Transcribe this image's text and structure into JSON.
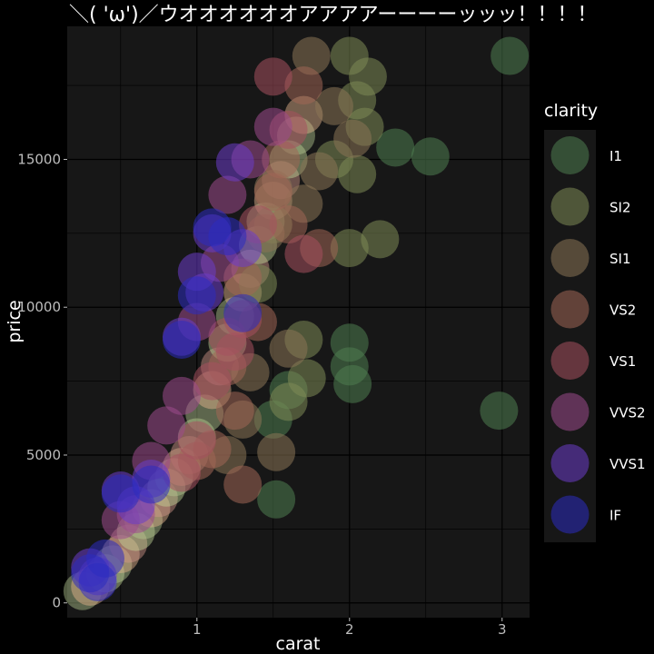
{
  "chart_data": {
    "type": "scatter",
    "title": "＼( 'ω')／ウオオオオオオアアアアーーーーッッッ！！！！",
    "xlabel": "carat",
    "ylabel": "price",
    "xlim": [
      0.15,
      3.18
    ],
    "ylim": [
      -500,
      19500
    ],
    "xticks": [
      1,
      2,
      3
    ],
    "yticks": [
      0,
      5000,
      10000,
      15000
    ],
    "xtick_labels": [
      "1",
      "2",
      "3"
    ],
    "ytick_labels": [
      "0",
      "5000",
      "10000",
      "15000"
    ],
    "grid": true,
    "background": "#171717",
    "legend": {
      "title": "clarity",
      "position": "right"
    },
    "series": [
      {
        "name": "I1",
        "color": "#4f7d50",
        "points": [
          [
            1.52,
            3500
          ],
          [
            1.5,
            6200
          ],
          [
            2.02,
            7400
          ],
          [
            2.0,
            8000
          ],
          [
            2.0,
            8800
          ],
          [
            2.3,
            15400
          ],
          [
            2.53,
            15100
          ],
          [
            2.98,
            6500
          ],
          [
            3.05,
            18500
          ],
          [
            1.6,
            7200
          ]
        ]
      },
      {
        "name": "SI2",
        "color": "#7d8a55",
        "points": [
          [
            1.7,
            8900
          ],
          [
            2.0,
            18500
          ],
          [
            2.05,
            17000
          ],
          [
            2.1,
            16100
          ],
          [
            2.2,
            12300
          ],
          [
            1.72,
            7600
          ],
          [
            1.6,
            6800
          ],
          [
            2.0,
            12000
          ],
          [
            2.05,
            14500
          ],
          [
            1.5,
            12800
          ],
          [
            1.9,
            15000
          ],
          [
            2.12,
            17800
          ],
          [
            1.4,
            10800
          ]
        ]
      },
      {
        "name": "SI1",
        "color": "#8a7555",
        "points": [
          [
            1.52,
            5100
          ],
          [
            1.6,
            8600
          ],
          [
            1.7,
            13500
          ],
          [
            1.8,
            14600
          ],
          [
            2.02,
            15700
          ],
          [
            1.75,
            18500
          ],
          [
            1.5,
            14000
          ],
          [
            1.2,
            5000
          ],
          [
            1.3,
            6200
          ],
          [
            1.45,
            12500
          ],
          [
            1.9,
            16800
          ],
          [
            1.35,
            7800
          ]
        ]
      },
      {
        "name": "VS2",
        "color": "#a06655",
        "points": [
          [
            1.5,
            13900
          ],
          [
            1.55,
            15000
          ],
          [
            1.6,
            12800
          ],
          [
            1.7,
            17500
          ],
          [
            1.2,
            8000
          ],
          [
            1.25,
            6500
          ],
          [
            1.1,
            5200
          ],
          [
            1.4,
            9500
          ],
          [
            1.0,
            4800
          ],
          [
            1.3,
            11000
          ],
          [
            1.8,
            12000
          ],
          [
            1.3,
            4000
          ]
        ]
      },
      {
        "name": "VS1",
        "color": "#a5505e",
        "points": [
          [
            1.5,
            17800
          ],
          [
            1.2,
            9000
          ],
          [
            1.1,
            7500
          ],
          [
            1.0,
            5500
          ],
          [
            1.3,
            9600
          ],
          [
            1.6,
            16000
          ],
          [
            1.4,
            12800
          ],
          [
            1.7,
            11800
          ],
          [
            1.25,
            8500
          ],
          [
            0.9,
            4400
          ]
        ]
      },
      {
        "name": "VVS2",
        "color": "#9d4a8d",
        "points": [
          [
            1.5,
            16100
          ],
          [
            1.15,
            11500
          ],
          [
            1.0,
            9500
          ],
          [
            0.9,
            7000
          ],
          [
            0.7,
            4800
          ],
          [
            0.5,
            2800
          ],
          [
            1.2,
            13800
          ],
          [
            1.35,
            15000
          ],
          [
            0.6,
            3000
          ],
          [
            0.8,
            6000
          ]
        ]
      },
      {
        "name": "VVS1",
        "color": "#6b3cc8",
        "points": [
          [
            1.25,
            14900
          ],
          [
            1.05,
            10500
          ],
          [
            1.1,
            12500
          ],
          [
            0.9,
            9000
          ],
          [
            0.5,
            3800
          ],
          [
            0.7,
            4200
          ],
          [
            1.3,
            12000
          ],
          [
            0.3,
            1200
          ],
          [
            0.35,
            900
          ],
          [
            0.6,
            3300
          ],
          [
            1.0,
            11200
          ]
        ]
      },
      {
        "name": "IF",
        "color": "#2b2cc0",
        "points": [
          [
            1.1,
            12700
          ],
          [
            1.0,
            10400
          ],
          [
            1.3,
            9800
          ],
          [
            0.7,
            4000
          ],
          [
            0.5,
            3700
          ],
          [
            0.3,
            1000
          ],
          [
            0.4,
            1500
          ],
          [
            1.2,
            12400
          ],
          [
            0.9,
            8900
          ],
          [
            0.35,
            700
          ]
        ]
      }
    ],
    "trend_points": [
      [
        0.25,
        400
      ],
      [
        0.3,
        550
      ],
      [
        0.35,
        750
      ],
      [
        0.4,
        1000
      ],
      [
        0.45,
        1300
      ],
      [
        0.5,
        1650
      ],
      [
        0.55,
        2000
      ],
      [
        0.6,
        2400
      ],
      [
        0.65,
        2800
      ],
      [
        0.7,
        3200
      ],
      [
        0.75,
        3550
      ],
      [
        0.8,
        3900
      ],
      [
        0.85,
        4250
      ],
      [
        0.9,
        4600
      ],
      [
        0.95,
        5000
      ],
      [
        1.0,
        5600
      ],
      [
        1.05,
        6400
      ],
      [
        1.1,
        7200
      ],
      [
        1.15,
        8000
      ],
      [
        1.2,
        8800
      ],
      [
        1.25,
        9700
      ],
      [
        1.3,
        10500
      ],
      [
        1.35,
        11300
      ],
      [
        1.4,
        12100
      ],
      [
        1.45,
        12900
      ],
      [
        1.5,
        13600
      ],
      [
        1.55,
        14300
      ],
      [
        1.6,
        15000
      ],
      [
        1.65,
        15800
      ],
      [
        1.7,
        16500
      ]
    ]
  }
}
